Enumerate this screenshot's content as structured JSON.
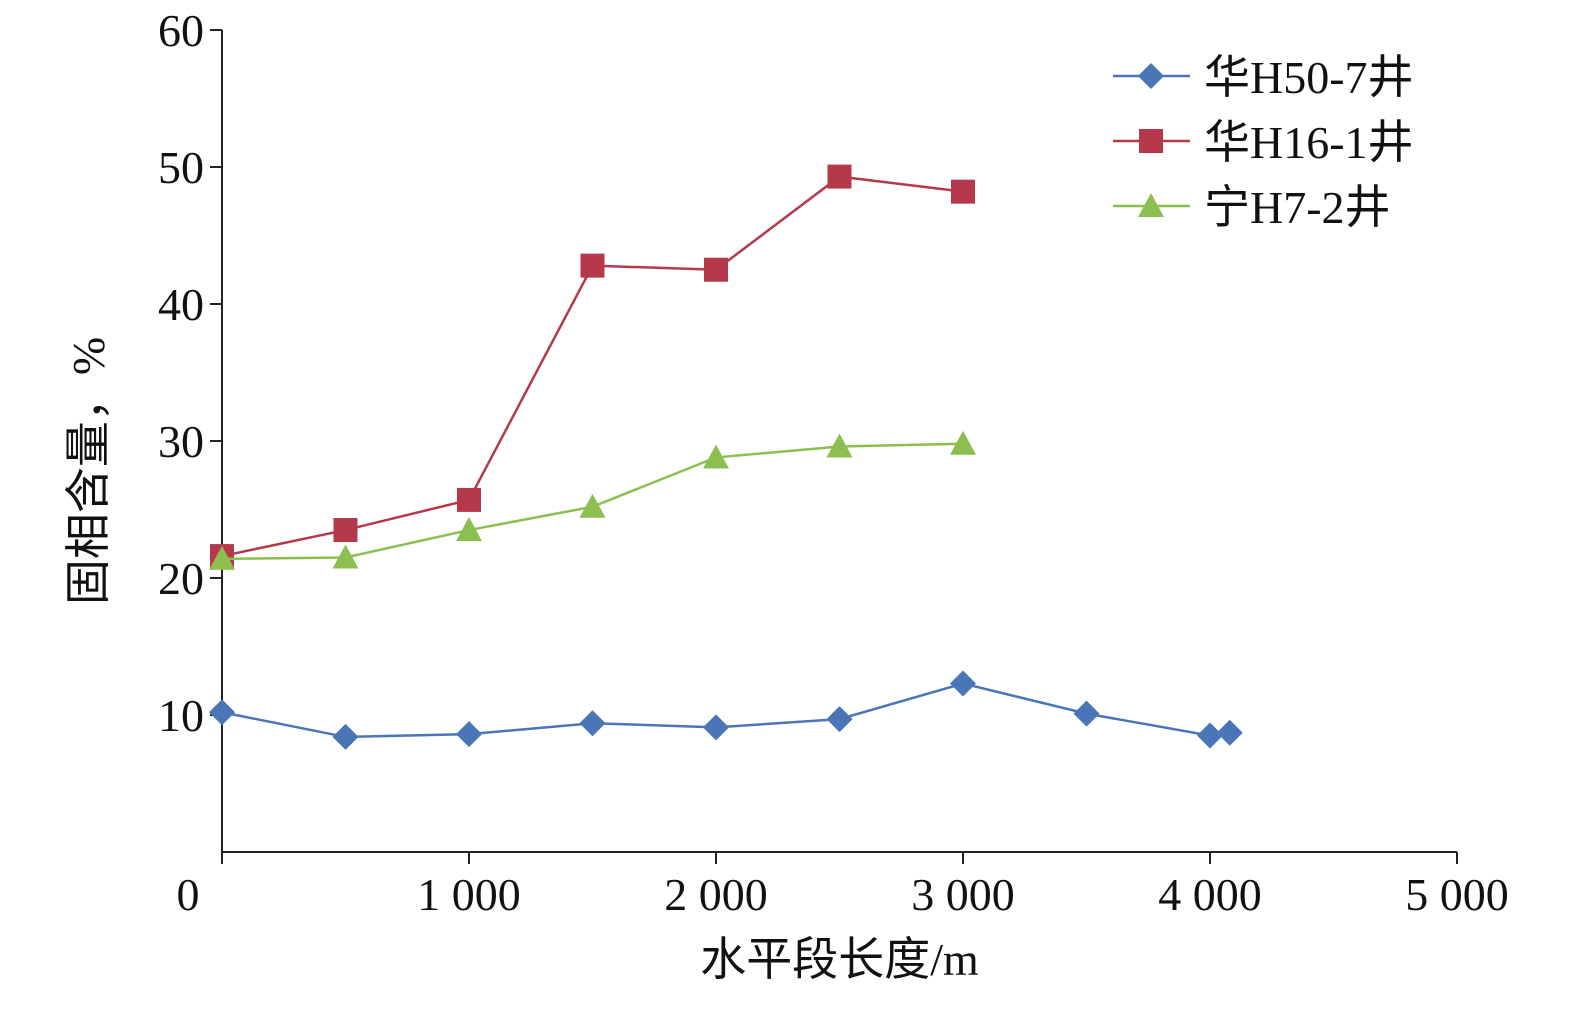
{
  "chart_data": {
    "type": "line",
    "xlabel": "水平段长度/m",
    "ylabel": "固相含量，%",
    "xlim": [
      0,
      5000
    ],
    "ylim": [
      0,
      60
    ],
    "x_ticks": [
      0,
      1000,
      2000,
      3000,
      4000,
      5000
    ],
    "x_tick_labels": [
      "0",
      "1 000",
      "2 000",
      "3 000",
      "4 000",
      "5 000"
    ],
    "y_ticks": [
      10,
      20,
      30,
      40,
      50,
      60
    ],
    "y_tick_labels": [
      "10",
      "20",
      "30",
      "40",
      "50",
      "60"
    ],
    "grid": false,
    "legend_position": "top-right",
    "series": [
      {
        "name": "华H50-7井",
        "color": "#4A76B8",
        "marker": "diamond",
        "x": [
          0,
          500,
          1000,
          1500,
          2000,
          2500,
          3000,
          3500,
          4000,
          4080
        ],
        "y": [
          10.2,
          8.4,
          8.6,
          9.4,
          9.1,
          9.7,
          12.3,
          10.1,
          8.5,
          8.7
        ]
      },
      {
        "name": "华H16-1井",
        "color": "#B5394B",
        "marker": "square",
        "x": [
          0,
          500,
          1000,
          1500,
          2000,
          2500,
          3000
        ],
        "y": [
          21.6,
          23.5,
          25.7,
          42.8,
          42.5,
          49.3,
          48.2
        ]
      },
      {
        "name": "宁H7-2井",
        "color": "#8CBF4F",
        "marker": "triangle",
        "x": [
          0,
          500,
          1000,
          1500,
          2000,
          2500,
          3000
        ],
        "y": [
          21.4,
          21.5,
          23.5,
          25.2,
          28.8,
          29.6,
          29.8
        ]
      }
    ]
  }
}
